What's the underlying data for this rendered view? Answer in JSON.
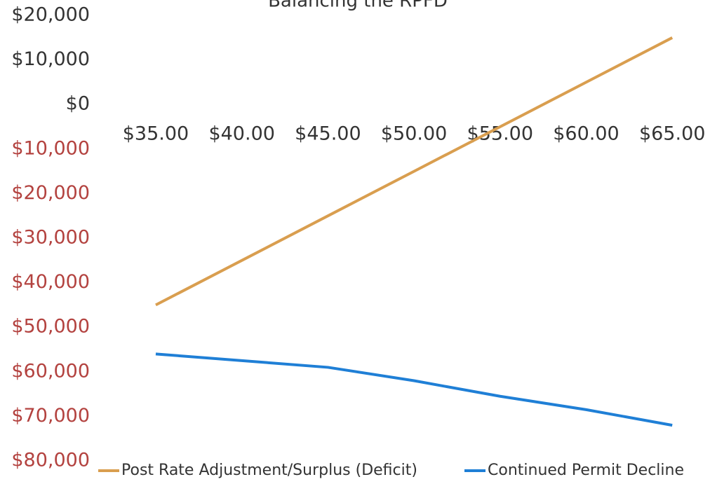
{
  "chart_data": {
    "type": "line",
    "title": "Balancing the RPFD",
    "categories": [
      "$35.00",
      "$40.00",
      "$45.00",
      "$50.00",
      "$55.00",
      "$60.00",
      "$65.00"
    ],
    "series": [
      {
        "name": "Post Rate Adjustment/Surplus (Deficit)",
        "color": "#d99e4f",
        "values": [
          -45000,
          -35000,
          -25000,
          -15000,
          -5000,
          5000,
          15000
        ]
      },
      {
        "name": "Continued Permit Decline",
        "color": "#1f7fd6",
        "values": [
          -56000,
          -57500,
          -59000,
          -62000,
          -65500,
          -68500,
          -72000
        ]
      }
    ],
    "ylim": [
      -80000,
      20000
    ],
    "yticks": [
      {
        "value": 20000,
        "label": "$20,000"
      },
      {
        "value": 10000,
        "label": "$10,000"
      },
      {
        "value": 0,
        "label": "$0"
      },
      {
        "value": -10000,
        "label": "$10,000"
      },
      {
        "value": -20000,
        "label": "$20,000"
      },
      {
        "value": -30000,
        "label": "$30,000"
      },
      {
        "value": -40000,
        "label": "$40,000"
      },
      {
        "value": -50000,
        "label": "$50,000"
      },
      {
        "value": -60000,
        "label": "$60,000"
      },
      {
        "value": -70000,
        "label": "$70,000"
      },
      {
        "value": -80000,
        "label": "$80,000"
      }
    ],
    "tick_color": "#333333",
    "negative_tick_color": "#b3423f",
    "grid": false,
    "legend": "bottom"
  }
}
